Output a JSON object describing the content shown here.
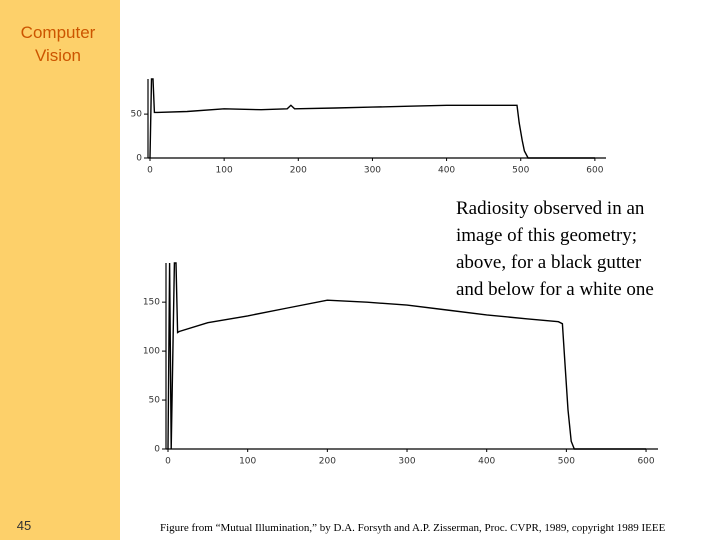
{
  "slide": {
    "heading": [
      "Computer",
      "Vision"
    ],
    "page_number": "45",
    "description": [
      "Radiosity observed in an",
      "image of this geometry;",
      "above, for a black gutter",
      "and below for a white one"
    ],
    "caption": "Figure from “Mutual Illumination,” by D.A. Forsyth and A.P. Zisserman, Proc. CVPR, 1989, copyright 1989 IEEE"
  },
  "chart_data": [
    {
      "type": "line",
      "color": "#000000",
      "x": [
        0,
        2,
        4,
        6,
        10,
        50,
        100,
        150,
        185,
        190,
        195,
        250,
        300,
        350,
        400,
        450,
        495,
        498,
        502,
        505,
        510,
        600
      ],
      "values": [
        0,
        90,
        90,
        52,
        52,
        53,
        56,
        55,
        56,
        60,
        56,
        57,
        58,
        59,
        60,
        60,
        60,
        40,
        20,
        8,
        0,
        0
      ],
      "xlim": [
        0,
        615
      ],
      "ylim": [
        0,
        90
      ],
      "xticks": [
        0,
        100,
        200,
        300,
        400,
        500,
        600
      ],
      "yticks": [
        0,
        50
      ]
    },
    {
      "type": "line",
      "color": "#000000",
      "x": [
        0,
        2,
        4,
        8,
        10,
        12,
        14,
        50,
        100,
        150,
        200,
        250,
        300,
        350,
        400,
        450,
        490,
        495,
        498,
        502,
        506,
        510,
        600
      ],
      "values": [
        0,
        190,
        0,
        190,
        190,
        119,
        120,
        129,
        136,
        144,
        152,
        150,
        147,
        142,
        137,
        133,
        130,
        128,
        90,
        40,
        8,
        0,
        0
      ],
      "xlim": [
        0,
        615
      ],
      "ylim": [
        0,
        190
      ],
      "xticks": [
        0,
        100,
        200,
        300,
        400,
        500,
        600
      ],
      "yticks": [
        0,
        50,
        100,
        150
      ]
    }
  ]
}
